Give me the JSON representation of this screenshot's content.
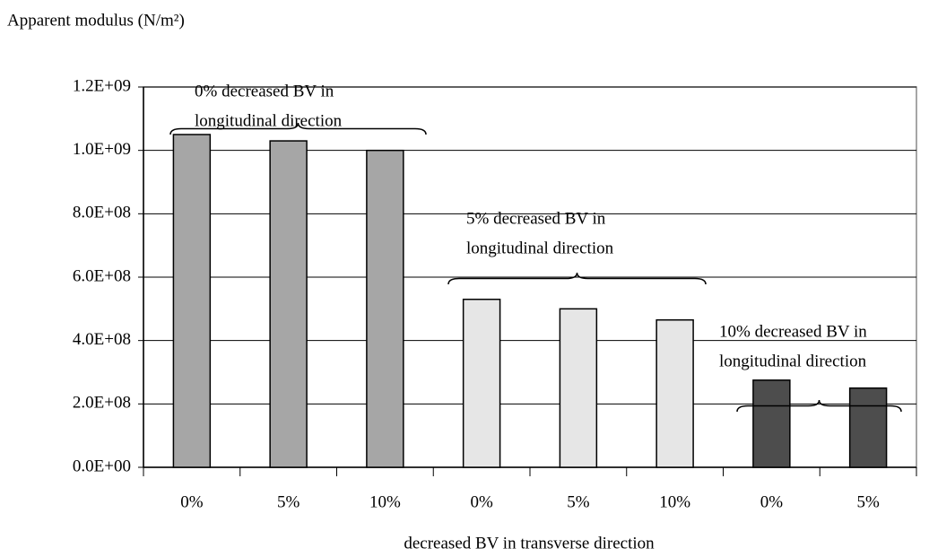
{
  "chart_data": {
    "type": "bar",
    "y_label": "Apparent modulus (N/m²)",
    "x_label": "decreased BV in transverse direction",
    "categories": [
      "0%",
      "5%",
      "10%",
      "0%",
      "5%",
      "10%",
      "0%",
      "5%"
    ],
    "values": [
      1050000000,
      1030000000,
      1000000000,
      530000000,
      500000000,
      465000000,
      275000000,
      250000000
    ],
    "colors": [
      "#a6a6a6",
      "#a6a6a6",
      "#a6a6a6",
      "#e6e6e6",
      "#e6e6e6",
      "#e6e6e6",
      "#4d4d4d",
      "#4d4d4d"
    ],
    "ylim": [
      0,
      1200000000
    ],
    "yticks": [
      {
        "value": 0,
        "label": "0.0E+00"
      },
      {
        "value": 200000000,
        "label": "2.0E+08"
      },
      {
        "value": 400000000,
        "label": "4.0E+08"
      },
      {
        "value": 600000000,
        "label": "6.0E+08"
      },
      {
        "value": 800000000,
        "label": "8.0E+08"
      },
      {
        "value": 1000000000,
        "label": "1.0E+09"
      },
      {
        "value": 1200000000,
        "label": "1.2E+09"
      }
    ],
    "grid": true,
    "annotations": [
      {
        "lines": [
          "0% decreased BV in",
          "longitudinal direction"
        ]
      },
      {
        "lines": [
          "5% decreased BV in",
          "longitudinal direction"
        ]
      },
      {
        "lines": [
          "10% decreased BV in",
          "longitudinal direction"
        ]
      }
    ]
  }
}
